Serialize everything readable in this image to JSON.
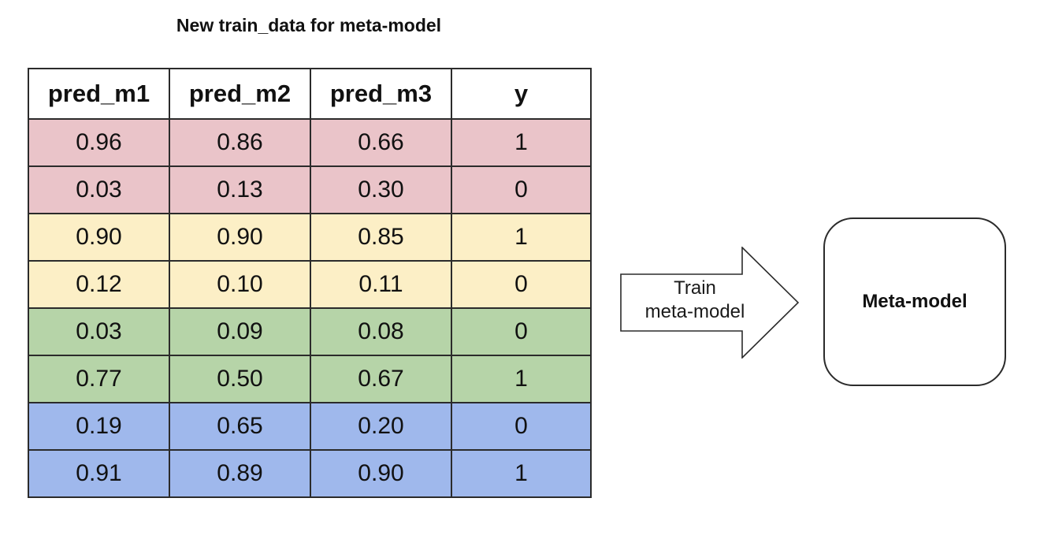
{
  "title": "New train_data for meta-model",
  "table": {
    "headers": [
      "pred_m1",
      "pred_m2",
      "pred_m3",
      "y"
    ],
    "rows": [
      {
        "cells": [
          "0.96",
          "0.86",
          "0.66",
          "1"
        ],
        "color": "#eac4c9"
      },
      {
        "cells": [
          "0.03",
          "0.13",
          "0.30",
          "0"
        ],
        "color": "#eac4c9"
      },
      {
        "cells": [
          "0.90",
          "0.90",
          "0.85",
          "1"
        ],
        "color": "#fcefc6"
      },
      {
        "cells": [
          "0.12",
          "0.10",
          "0.11",
          "0"
        ],
        "color": "#fcefc6"
      },
      {
        "cells": [
          "0.03",
          "0.09",
          "0.08",
          "0"
        ],
        "color": "#b6d4a8"
      },
      {
        "cells": [
          "0.77",
          "0.50",
          "0.67",
          "1"
        ],
        "color": "#b6d4a8"
      },
      {
        "cells": [
          "0.19",
          "0.65",
          "0.20",
          "0"
        ],
        "color": "#9fb8ec"
      },
      {
        "cells": [
          "0.91",
          "0.89",
          "0.90",
          "1"
        ],
        "color": "#9fb8ec"
      }
    ]
  },
  "arrow": {
    "line1": "Train",
    "line2": "meta-model"
  },
  "meta_model": {
    "label": "Meta-model"
  }
}
